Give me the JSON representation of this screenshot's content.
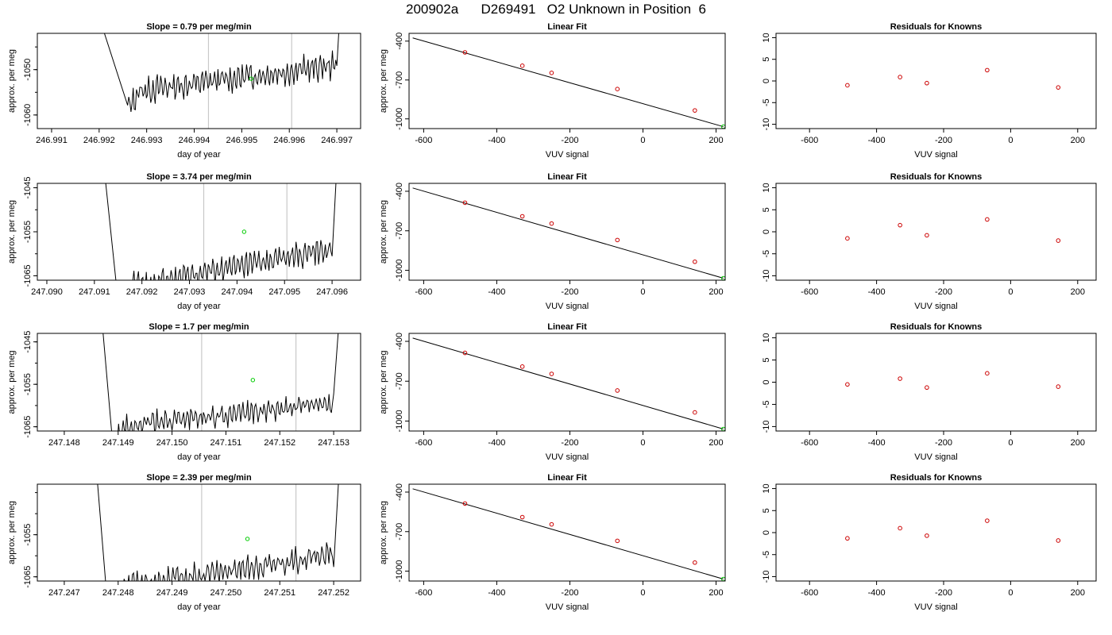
{
  "page": {
    "title": "200902a      D269491   O2 Unknown in Position  6"
  },
  "colors": {
    "line": "#000000",
    "known_point": "#cc0000",
    "unknown_point": "#00cc00",
    "marker_line": "#c8c8c8"
  },
  "chart_data": [
    {
      "panel": "row1-time",
      "type": "line",
      "title": "Slope =  0.79  per meg/min",
      "xlabel": "day of year",
      "ylabel": "approx. per meg",
      "xlim": [
        246.9907,
        246.9975
      ],
      "ylim": [
        -1063,
        -1042
      ],
      "xticks": [
        "246.991",
        "246.992",
        "246.993",
        "246.994",
        "246.995",
        "246.996",
        "246.997"
      ],
      "yticks": [
        "-1050",
        "-1060"
      ],
      "ytick_values": [
        -1050,
        -1060
      ],
      "markers_x": [
        246.9943,
        246.99605
      ],
      "unknown_point": [
        246.9952,
        -1052
      ],
      "drop": {
        "start": [
          246.99205,
          -1040
        ],
        "plateau_start": 246.9926,
        "plateau_end": 246.997,
        "rise_end": [
          246.99705,
          -1040
        ]
      },
      "trend": {
        "y0": -1055,
        "slope": 3.0,
        "amplitude": 2.0
      }
    },
    {
      "panel": "row1-fit",
      "type": "scatter",
      "title": "Linear Fit",
      "xlabel": "VUV signal",
      "ylabel": "approx. per meg",
      "xlim": [
        -640,
        225
      ],
      "ylim": [
        -1075,
        -340
      ],
      "xticks": [
        "-600",
        "-400",
        "-200",
        "0",
        "200"
      ],
      "xtick_values": [
        -600,
        -400,
        -200,
        0,
        200
      ],
      "yticks": [
        "-400",
        "-700",
        "-1000"
      ],
      "ytick_values": [
        -400,
        -700,
        -1000
      ],
      "line": [
        [
          -630,
          -375
        ],
        [
          220,
          -1060
        ]
      ],
      "knowns": [
        [
          -487,
          -487
        ],
        [
          -330,
          -590
        ],
        [
          -250,
          -645
        ],
        [
          -70,
          -770
        ],
        [
          142,
          -935
        ]
      ],
      "unknown": [
        [
          220,
          -1060
        ]
      ]
    },
    {
      "panel": "row1-resid",
      "type": "scatter",
      "title": "Residuals for Knowns",
      "xlabel": "VUV signal",
      "ylabel": "",
      "xlim": [
        -700,
        255
      ],
      "ylim": [
        -11,
        11
      ],
      "xticks": [
        "-600",
        "-400",
        "-200",
        "0",
        "200"
      ],
      "xtick_values": [
        -600,
        -400,
        -200,
        0,
        200
      ],
      "yticks": [
        "10",
        "5",
        "0",
        "-5",
        "-10"
      ],
      "ytick_values": [
        10,
        5,
        0,
        -5,
        -10
      ],
      "knowns": [
        [
          -487,
          -1.0
        ],
        [
          -330,
          0.9
        ],
        [
          -250,
          -0.5
        ],
        [
          -70,
          2.5
        ],
        [
          142,
          -1.5
        ]
      ]
    },
    {
      "panel": "row2-time",
      "type": "line",
      "title": "Slope =  3.74  per meg/min",
      "xlabel": "day of year",
      "ylabel": "approx. per meg",
      "xlim": [
        247.0898,
        247.0966
      ],
      "ylim": [
        -1066,
        -1044
      ],
      "xticks": [
        "247.090",
        "247.091",
        "247.092",
        "247.093",
        "247.094",
        "247.095",
        "247.096"
      ],
      "yticks": [
        "-1045",
        "-1055",
        "-1065"
      ],
      "ytick_values": [
        -1045,
        -1055,
        -1065
      ],
      "markers_x": [
        247.0933,
        247.09505
      ],
      "unknown_point": [
        247.09415,
        -1055
      ],
      "drop": {
        "start": [
          247.0912,
          -1040
        ],
        "plateau_start": 247.0915,
        "plateau_end": 247.096,
        "rise_end": [
          247.0961,
          -1040
        ]
      },
      "trend": {
        "y0": -1068,
        "slope": 4.5,
        "amplitude": 2.0
      }
    },
    {
      "panel": "row2-fit",
      "type": "scatter",
      "title": "Linear Fit",
      "xlabel": "VUV signal",
      "ylabel": "approx. per meg",
      "xlim": [
        -640,
        225
      ],
      "ylim": [
        -1075,
        -340
      ],
      "xticks": [
        "-600",
        "-400",
        "-200",
        "0",
        "200"
      ],
      "xtick_values": [
        -600,
        -400,
        -200,
        0,
        200
      ],
      "yticks": [
        "-400",
        "-700",
        "-1000"
      ],
      "ytick_values": [
        -400,
        -700,
        -1000
      ],
      "line": [
        [
          -630,
          -375
        ],
        [
          220,
          -1060
        ]
      ],
      "knowns": [
        [
          -487,
          -487
        ],
        [
          -330,
          -590
        ],
        [
          -250,
          -645
        ],
        [
          -70,
          -770
        ],
        [
          142,
          -935
        ]
      ],
      "unknown": [
        [
          220,
          -1060
        ]
      ]
    },
    {
      "panel": "row2-resid",
      "type": "scatter",
      "title": "Residuals for Knowns",
      "xlabel": "VUV signal",
      "ylabel": "",
      "xlim": [
        -700,
        255
      ],
      "ylim": [
        -11,
        11
      ],
      "xticks": [
        "-600",
        "-400",
        "-200",
        "0",
        "200"
      ],
      "xtick_values": [
        -600,
        -400,
        -200,
        0,
        200
      ],
      "yticks": [
        "10",
        "5",
        "0",
        "-5",
        "-10"
      ],
      "ytick_values": [
        10,
        5,
        0,
        -5,
        -10
      ],
      "knowns": [
        [
          -487,
          -1.5
        ],
        [
          -330,
          1.5
        ],
        [
          -250,
          -0.8
        ],
        [
          -70,
          2.8
        ],
        [
          142,
          -2.0
        ]
      ]
    },
    {
      "panel": "row3-time",
      "type": "line",
      "title": "Slope =  1.7  per meg/min",
      "xlabel": "day of year",
      "ylabel": "approx. per meg",
      "xlim": [
        247.1475,
        247.1535
      ],
      "ylim": [
        -1066,
        -1043
      ],
      "xticks": [
        "247.148",
        "247.149",
        "247.150",
        "247.151",
        "247.152",
        "247.153"
      ],
      "yticks": [
        "-1045",
        "-1055",
        "-1065"
      ],
      "ytick_values": [
        -1045,
        -1055,
        -1065
      ],
      "markers_x": [
        247.15055,
        247.1523
      ],
      "unknown_point": [
        247.1515,
        -1054
      ],
      "drop": {
        "start": [
          247.1487,
          -1040
        ],
        "plateau_start": 247.1489,
        "plateau_end": 247.153,
        "rise_end": [
          247.1531,
          -1040
        ]
      },
      "trend": {
        "y0": -1065,
        "slope": 2.8,
        "amplitude": 1.8
      }
    },
    {
      "panel": "row3-fit",
      "type": "scatter",
      "title": "Linear Fit",
      "xlabel": "VUV signal",
      "ylabel": "approx. per meg",
      "xlim": [
        -640,
        225
      ],
      "ylim": [
        -1075,
        -340
      ],
      "xticks": [
        "-600",
        "-400",
        "-200",
        "0",
        "200"
      ],
      "xtick_values": [
        -600,
        -400,
        -200,
        0,
        200
      ],
      "yticks": [
        "-400",
        "-700",
        "-1000"
      ],
      "ytick_values": [
        -400,
        -700,
        -1000
      ],
      "line": [
        [
          -630,
          -375
        ],
        [
          220,
          -1060
        ]
      ],
      "knowns": [
        [
          -487,
          -487
        ],
        [
          -330,
          -590
        ],
        [
          -250,
          -645
        ],
        [
          -70,
          -770
        ],
        [
          142,
          -935
        ]
      ],
      "unknown": [
        [
          220,
          -1060
        ]
      ]
    },
    {
      "panel": "row3-resid",
      "type": "scatter",
      "title": "Residuals for Knowns",
      "xlabel": "VUV signal",
      "ylabel": "",
      "xlim": [
        -700,
        255
      ],
      "ylim": [
        -11,
        11
      ],
      "xticks": [
        "-600",
        "-400",
        "-200",
        "0",
        "200"
      ],
      "xtick_values": [
        -600,
        -400,
        -200,
        0,
        200
      ],
      "yticks": [
        "10",
        "5",
        "0",
        "-5",
        "-10"
      ],
      "ytick_values": [
        10,
        5,
        0,
        -5,
        -10
      ],
      "knowns": [
        [
          -487,
          -0.5
        ],
        [
          -330,
          0.8
        ],
        [
          -250,
          -1.2
        ],
        [
          -70,
          2.0
        ],
        [
          142,
          -1.0
        ]
      ]
    },
    {
      "panel": "row4-time",
      "type": "line",
      "title": "Slope =  2.39  per meg/min",
      "xlabel": "day of year",
      "ylabel": "approx. per meg",
      "xlim": [
        247.2465,
        247.2525
      ],
      "ylim": [
        -1066,
        -1043
      ],
      "xticks": [
        "247.247",
        "247.248",
        "247.249",
        "247.250",
        "247.251",
        "247.252"
      ],
      "yticks": [
        "-1055",
        "-1065"
      ],
      "ytick_values": [
        -1055,
        -1065
      ],
      "markers_x": [
        247.24955,
        247.2513
      ],
      "unknown_point": [
        247.2504,
        -1056
      ],
      "drop": {
        "start": [
          247.2476,
          -1040
        ],
        "plateau_start": 247.2478,
        "plateau_end": 247.252,
        "rise_end": [
          247.2521,
          -1040
        ]
      },
      "trend": {
        "y0": -1068,
        "slope": 4.2,
        "amplitude": 2.0
      }
    },
    {
      "panel": "row4-fit",
      "type": "scatter",
      "title": "Linear Fit",
      "xlabel": "VUV signal",
      "ylabel": "approx. per meg",
      "xlim": [
        -640,
        225
      ],
      "ylim": [
        -1075,
        -340
      ],
      "xticks": [
        "-600",
        "-400",
        "-200",
        "0",
        "200"
      ],
      "xtick_values": [
        -600,
        -400,
        -200,
        0,
        200
      ],
      "yticks": [
        "-400",
        "-700",
        "-1000"
      ],
      "ytick_values": [
        -400,
        -700,
        -1000
      ],
      "line": [
        [
          -630,
          -375
        ],
        [
          220,
          -1060
        ]
      ],
      "knowns": [
        [
          -487,
          -487
        ],
        [
          -330,
          -590
        ],
        [
          -250,
          -645
        ],
        [
          -70,
          -770
        ],
        [
          142,
          -935
        ]
      ],
      "unknown": [
        [
          220,
          -1060
        ]
      ]
    },
    {
      "panel": "row4-resid",
      "type": "scatter",
      "title": "Residuals for Knowns",
      "xlabel": "VUV signal",
      "ylabel": "",
      "xlim": [
        -700,
        255
      ],
      "ylim": [
        -11,
        11
      ],
      "xticks": [
        "-600",
        "-400",
        "-200",
        "0",
        "200"
      ],
      "xtick_values": [
        -600,
        -400,
        -200,
        0,
        200
      ],
      "yticks": [
        "10",
        "5",
        "0",
        "-5",
        "-10"
      ],
      "ytick_values": [
        10,
        5,
        0,
        -5,
        -10
      ],
      "knowns": [
        [
          -487,
          -1.3
        ],
        [
          -330,
          1.0
        ],
        [
          -250,
          -0.7
        ],
        [
          -70,
          2.7
        ],
        [
          142,
          -1.8
        ]
      ]
    }
  ]
}
